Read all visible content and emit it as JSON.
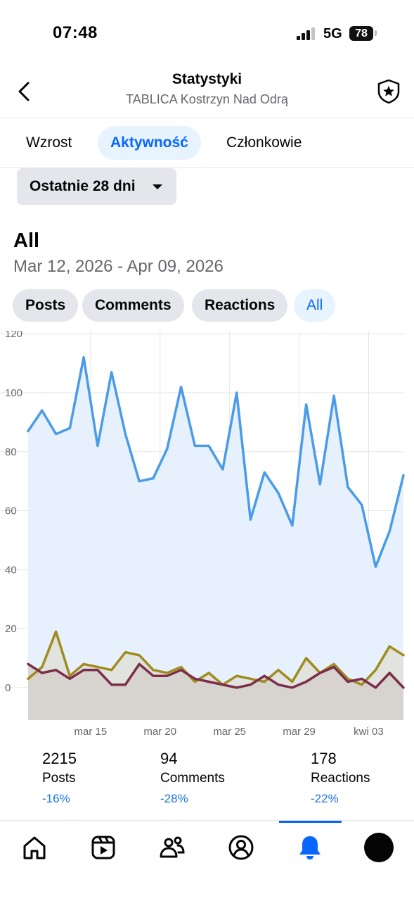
{
  "status_bar": {
    "time": "07:48",
    "network": "5G",
    "battery": "78"
  },
  "header": {
    "title": "Statystyki",
    "subtitle": "TABLICA Kostrzyn Nad Odrą"
  },
  "tabs": [
    {
      "label": "Wzrost",
      "active": false
    },
    {
      "label": "Aktywność",
      "active": true
    },
    {
      "label": "Członkowie",
      "active": false
    }
  ],
  "range": {
    "label": "Ostatnie 28 dni"
  },
  "section": {
    "title": "All",
    "date_range": "Mar 12, 2026 - Apr 09, 2026"
  },
  "chips": [
    {
      "label": "Posts",
      "active": false
    },
    {
      "label": "Comments",
      "active": false
    },
    {
      "label": "Reactions",
      "active": false
    },
    {
      "label": "All",
      "active": true
    }
  ],
  "colors": {
    "posts": "#4a9be8",
    "reactions": "#a08c1e",
    "comments": "#7b2d4a",
    "accent": "#0866ff",
    "positive_negative": "#1b74e4"
  },
  "chart_data": {
    "type": "line",
    "ylim": [
      -11,
      121
    ],
    "yticks": [
      0,
      20,
      40,
      60,
      80,
      100,
      120
    ],
    "x_tick_labels": [
      {
        "index": 5,
        "label": "mar 15"
      },
      {
        "index": 10,
        "label": "mar 20"
      },
      {
        "index": 15,
        "label": "mar 25"
      },
      {
        "index": 20,
        "label": "mar 29"
      },
      {
        "index": 25,
        "label": "kwi 03"
      }
    ],
    "series": [
      {
        "key": "posts",
        "values": [
          87,
          94,
          86,
          88,
          112,
          82,
          107,
          86,
          70,
          71,
          81,
          102,
          82,
          82,
          74,
          100,
          57,
          73,
          66,
          55,
          96,
          69,
          99,
          68,
          62,
          41,
          53,
          72
        ]
      },
      {
        "key": "reactions",
        "values": [
          3,
          7,
          19,
          4,
          8,
          7,
          6,
          12,
          11,
          6,
          5,
          7,
          2,
          5,
          1,
          4,
          3,
          2,
          6,
          2,
          10,
          5,
          8,
          3,
          1,
          6,
          14,
          11
        ]
      },
      {
        "key": "comments",
        "values": [
          8,
          5,
          6,
          3,
          6,
          6,
          1,
          1,
          8,
          4,
          4,
          6,
          3,
          2,
          1,
          0,
          1,
          4,
          1,
          0,
          2,
          5,
          7,
          2,
          3,
          0,
          5,
          0
        ]
      }
    ]
  },
  "summary": [
    {
      "value": "2215",
      "label": "Posts",
      "change": "-16%"
    },
    {
      "value": "94",
      "label": "Comments",
      "change": "-28%"
    },
    {
      "value": "178",
      "label": "Reactions",
      "change": "-22%"
    }
  ],
  "nav": [
    "home-icon",
    "video-icon",
    "groups-icon",
    "profile-circle-icon",
    "bell-icon",
    "avatar"
  ]
}
